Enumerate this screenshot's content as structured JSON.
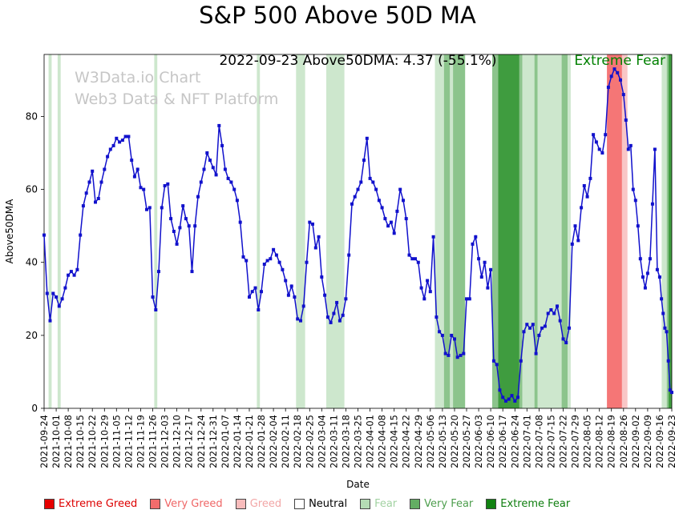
{
  "watermark": {
    "line1": "W3Data.io Chart",
    "line2": "Web3 Data & NFT Platform"
  },
  "chart_data": {
    "type": "line",
    "title": "S&P 500 Above 50D MA",
    "xlabel": "Date",
    "ylabel": "Above50DMA",
    "ylim": [
      0,
      97
    ],
    "yticks": [
      0,
      20,
      40,
      60,
      80
    ],
    "grid": false,
    "line_color": "#1111cc",
    "marker": "square",
    "legend_position": "bottom",
    "annotation": {
      "text": "2022-09-23 Above50DMA: 4.37 (-55.1%)",
      "sentiment": "Extreme Fear",
      "sentiment_color": "#008000"
    },
    "latest": {
      "date": "2022-09-23",
      "value": 4.37,
      "change_pct": "-55.1%"
    },
    "x_unit": "week index aligned with x_tick_labels; each weekly_values array holds that week's daily readings",
    "x_tick_labels": [
      "2021-09-24",
      "2021-10-01",
      "2021-10-08",
      "2021-10-15",
      "2021-10-22",
      "2021-10-29",
      "2021-11-05",
      "2021-11-12",
      "2021-11-19",
      "2021-11-26",
      "2021-12-03",
      "2021-12-10",
      "2021-12-17",
      "2021-12-24",
      "2021-12-31",
      "2022-01-07",
      "2022-01-14",
      "2022-01-21",
      "2022-01-28",
      "2022-02-04",
      "2022-02-11",
      "2022-02-18",
      "2022-02-25",
      "2022-03-04",
      "2022-03-11",
      "2022-03-18",
      "2022-03-25",
      "2022-04-01",
      "2022-04-08",
      "2022-04-15",
      "2022-04-22",
      "2022-04-29",
      "2022-05-06",
      "2022-05-13",
      "2022-05-20",
      "2022-05-27",
      "2022-06-03",
      "2022-06-10",
      "2022-06-17",
      "2022-06-24",
      "2022-07-01",
      "2022-07-08",
      "2022-07-15",
      "2022-07-22",
      "2022-07-29",
      "2022-08-05",
      "2022-08-12",
      "2022-08-19",
      "2022-08-26",
      "2022-09-02",
      "2022-09-09",
      "2022-09-16",
      "2022-09-23"
    ],
    "weekly_values": [
      [
        47.5,
        31.5,
        24,
        31.5
      ],
      [
        30.5,
        28,
        30,
        33
      ],
      [
        36.5,
        37.5,
        36.5,
        38
      ],
      [
        47.5,
        55.5,
        59,
        62
      ],
      [
        65,
        56.5,
        57.5,
        62
      ],
      [
        65.5,
        69,
        71,
        72
      ],
      [
        74,
        73,
        73.5,
        74.5
      ],
      [
        74.5,
        68,
        63.5,
        65.5
      ],
      [
        60.5,
        60,
        54.5,
        55
      ],
      [
        30.5,
        27,
        37.5,
        55
      ],
      [
        61,
        61.5,
        52,
        48.5
      ],
      [
        45,
        49.5,
        55.5,
        52
      ],
      [
        50,
        37.5,
        50,
        58
      ],
      [
        62,
        65.5,
        70,
        68
      ],
      [
        66,
        64,
        77.5,
        72
      ],
      [
        65.5,
        63,
        62,
        60
      ],
      [
        57,
        51,
        41.5,
        40.5
      ],
      [
        30.5,
        32,
        33,
        27
      ],
      [
        32,
        39.5,
        40.5,
        41
      ],
      [
        43.5,
        42,
        40,
        38
      ],
      [
        35,
        31,
        33.5,
        30.5
      ],
      [
        24.5,
        24,
        28,
        40
      ],
      [
        51,
        50.5,
        44,
        47
      ],
      [
        36,
        31,
        25,
        23.5
      ],
      [
        26,
        29,
        24,
        25.5
      ],
      [
        30,
        42,
        56,
        58
      ],
      [
        60,
        62,
        68,
        74
      ],
      [
        63,
        62,
        60,
        57
      ],
      [
        55,
        52,
        50,
        51
      ],
      [
        48,
        54,
        60,
        57
      ],
      [
        52,
        42,
        41,
        41
      ],
      [
        40,
        33,
        30,
        35
      ],
      [
        32,
        47,
        25,
        21
      ],
      [
        20,
        15,
        14.5,
        20
      ],
      [
        19,
        14,
        14.5,
        15
      ],
      [
        30,
        30,
        45,
        47
      ],
      [
        41,
        36,
        40,
        33
      ],
      [
        38,
        13,
        12,
        5
      ],
      [
        3,
        2,
        2.5,
        3.5
      ],
      [
        2,
        3,
        13,
        21
      ],
      [
        23,
        22,
        23,
        15
      ],
      [
        20,
        22,
        22.5,
        26
      ],
      [
        27,
        26,
        28,
        24
      ],
      [
        19,
        18,
        22,
        45
      ],
      [
        50,
        46,
        55,
        61
      ],
      [
        58,
        63,
        75,
        73
      ],
      [
        71,
        70,
        75,
        88
      ],
      [
        91,
        93,
        92,
        90
      ],
      [
        86,
        79,
        71,
        72,
        60
      ],
      [
        57,
        50,
        41,
        36,
        33
      ],
      [
        37,
        41,
        56,
        71,
        38
      ],
      [
        36,
        30,
        26,
        22,
        21,
        13,
        5
      ],
      [
        4.37
      ]
    ],
    "zones": [
      {
        "label": "Extreme Greed",
        "min": 94,
        "max": 101,
        "band": "#ff1a1a",
        "swatch": "#e60000",
        "text": "#dd0000"
      },
      {
        "label": "Very Greed",
        "min": 88,
        "max": 94,
        "band": "#f57676",
        "swatch": "#f26c6c",
        "text": "#ef6666"
      },
      {
        "label": "Greed",
        "min": 78,
        "max": 88,
        "band": "#f9c6c6",
        "swatch": "#f8bcbc",
        "text": "#f2a6a6"
      },
      {
        "label": "Neutral",
        "min": 30,
        "max": 78,
        "band": null,
        "swatch": "#ffffff",
        "text": "#000000"
      },
      {
        "label": "Fear",
        "min": 20,
        "max": 30,
        "band": "#cde7cd",
        "swatch": "#b4dcb4",
        "text": "#a2d2a2"
      },
      {
        "label": "Very Fear",
        "min": 10,
        "max": 20,
        "band": "#8cc48c",
        "swatch": "#63ad63",
        "text": "#4e9e4e"
      },
      {
        "label": "Extreme Fear",
        "min": 0,
        "max": 10,
        "band": "#3f9c3f",
        "swatch": "#128212",
        "text": "#0e7e0e"
      }
    ]
  }
}
